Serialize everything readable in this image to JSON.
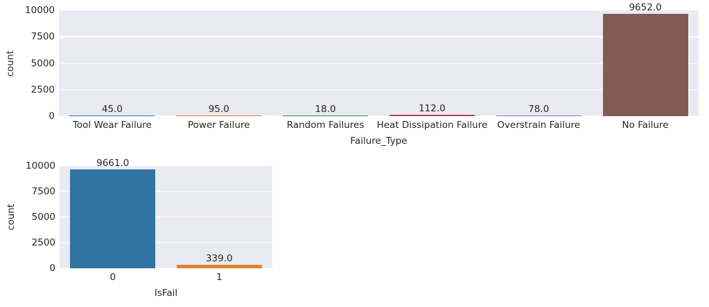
{
  "colors": {
    "figure_background": "#ffffff",
    "plot_background": "#eaeaf2",
    "gridline": "#ffffff",
    "text": "#262626"
  },
  "chart_data": [
    {
      "type": "bar",
      "title": "",
      "xlabel": "Failure_Type",
      "ylabel": "count",
      "categories": [
        "Tool Wear Failure",
        "Power Failure",
        "Random Failures",
        "Heat Dissipation Failure",
        "Overstrain Failure",
        "No Failure"
      ],
      "values": [
        45.0,
        95.0,
        18.0,
        112.0,
        78.0,
        9652.0
      ],
      "bar_labels": [
        "45.0",
        "95.0",
        "18.0",
        "112.0",
        "78.0",
        "9652.0"
      ],
      "bar_colors": [
        "#3274a1",
        "#e1812c",
        "#3a923a",
        "#c03d3e",
        "#9372b2",
        "#845b53"
      ],
      "ytick_labels": [
        "0",
        "2500",
        "5000",
        "7500",
        "10000"
      ],
      "ytick_values": [
        0,
        2500,
        5000,
        7500,
        10000
      ],
      "ylim": [
        0,
        10000
      ],
      "grid": true,
      "legend": null
    },
    {
      "type": "bar",
      "title": "",
      "xlabel": "IsFail",
      "ylabel": "count",
      "categories": [
        "0",
        "1"
      ],
      "values": [
        9661.0,
        339.0
      ],
      "bar_labels": [
        "9661.0",
        "339.0"
      ],
      "bar_colors": [
        "#3274a1",
        "#e1812c"
      ],
      "ytick_labels": [
        "0",
        "2500",
        "5000",
        "7500",
        "10000"
      ],
      "ytick_values": [
        0,
        2500,
        5000,
        7500,
        10000
      ],
      "ylim": [
        0,
        10000
      ],
      "grid": true,
      "legend": null
    }
  ]
}
